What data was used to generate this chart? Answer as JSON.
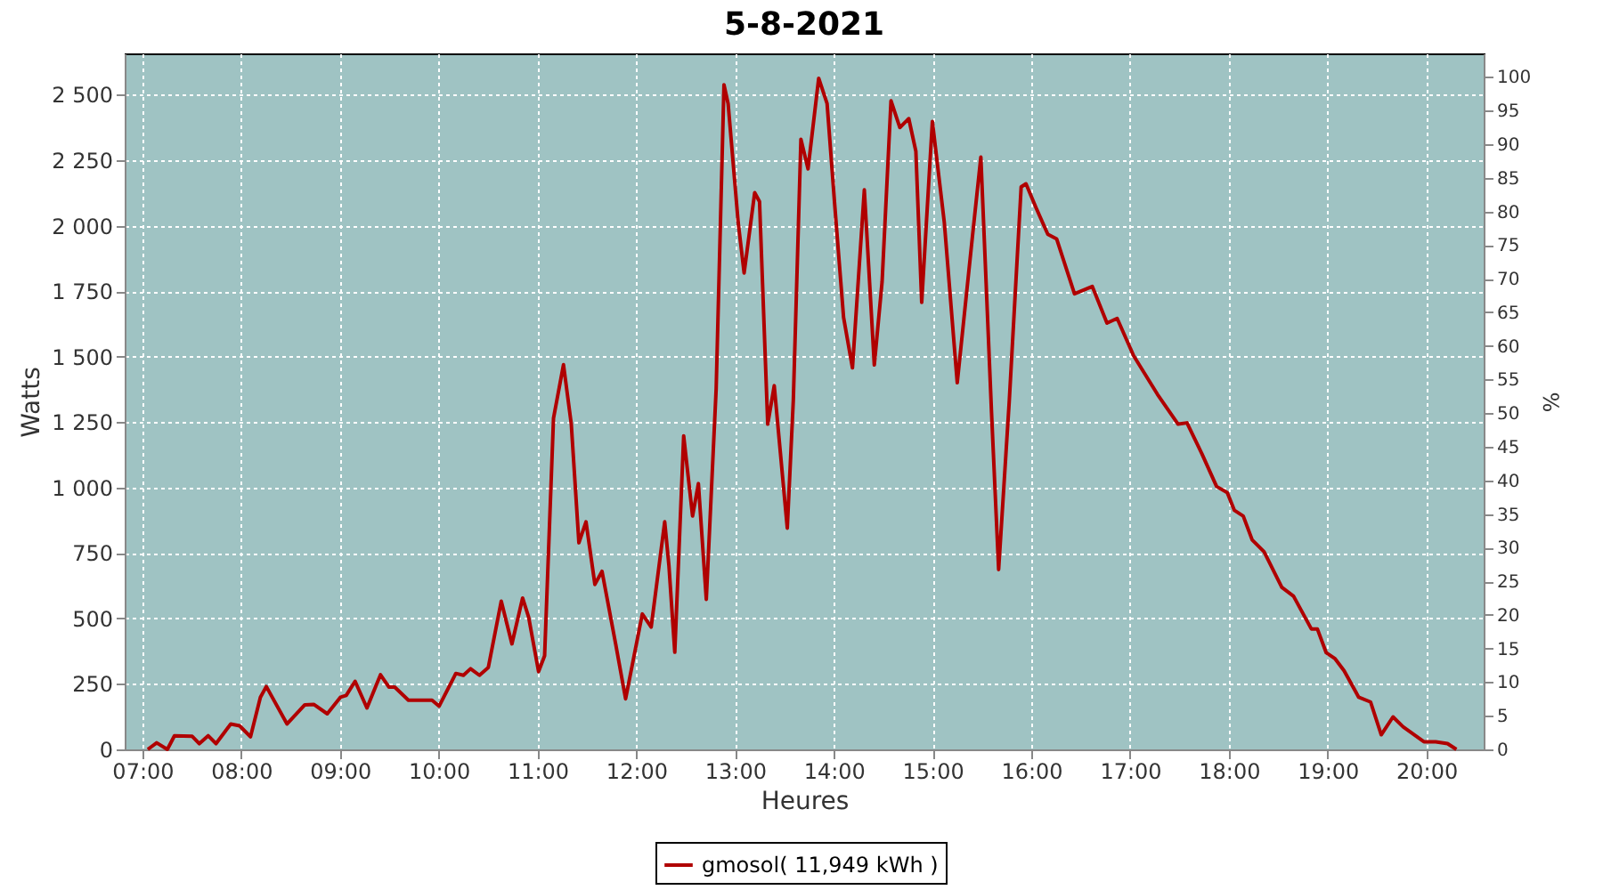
{
  "chart_data": {
    "type": "line",
    "title": "5-8-2021",
    "xlabel": "Heures",
    "ylabel": "Watts",
    "y2label": "%",
    "xlim": [
      6.82,
      20.58
    ],
    "xticks": [
      {
        "value": 7,
        "label": "07:00"
      },
      {
        "value": 8,
        "label": "08:00"
      },
      {
        "value": 9,
        "label": "09:00"
      },
      {
        "value": 10,
        "label": "10:00"
      },
      {
        "value": 11,
        "label": "11:00"
      },
      {
        "value": 12,
        "label": "12:00"
      },
      {
        "value": 13,
        "label": "13:00"
      },
      {
        "value": 14,
        "label": "14:00"
      },
      {
        "value": 15,
        "label": "15:00"
      },
      {
        "value": 16,
        "label": "16:00"
      },
      {
        "value": 17,
        "label": "17:00"
      },
      {
        "value": 18,
        "label": "18:00"
      },
      {
        "value": 19,
        "label": "19:00"
      },
      {
        "value": 20,
        "label": "20:00"
      }
    ],
    "ylim": [
      0,
      2658
    ],
    "yticks": [
      0,
      250,
      500,
      750,
      {
        "value": 1000,
        "label": "1 000"
      },
      {
        "value": 1250,
        "label": "1 250"
      },
      {
        "value": 1500,
        "label": "1 500"
      },
      {
        "value": 1750,
        "label": "1 750"
      },
      {
        "value": 2000,
        "label": "2 000"
      },
      {
        "value": 2250,
        "label": "2 250"
      },
      {
        "value": 2500,
        "label": "2 500"
      }
    ],
    "y2lim": [
      0,
      103.5
    ],
    "y2ticks": [
      0,
      5,
      10,
      15,
      20,
      25,
      30,
      35,
      40,
      45,
      50,
      55,
      60,
      65,
      70,
      75,
      80,
      85,
      90,
      95,
      100
    ],
    "grid": true,
    "legend": "bottom",
    "marker": "none",
    "line_style": "solid",
    "series": [
      {
        "name": "gmosol( 11,949 kWh )",
        "color": "#b00000",
        "x": [
          7.054,
          7.144,
          7.252,
          7.324,
          7.504,
          7.576,
          7.665,
          7.745,
          7.894,
          7.984,
          8.094,
          8.194,
          8.254,
          8.464,
          8.644,
          8.734,
          8.871,
          9.004,
          9.063,
          9.153,
          9.273,
          9.41,
          9.495,
          9.554,
          9.693,
          9.932,
          10.004,
          10.173,
          10.25,
          10.322,
          10.412,
          10.502,
          10.633,
          10.741,
          10.849,
          10.91,
          11.011,
          11.072,
          11.162,
          11.263,
          11.342,
          11.419,
          11.491,
          11.581,
          11.653,
          11.791,
          11.892,
          12.061,
          12.151,
          12.288,
          12.331,
          12.39,
          12.48,
          12.57,
          12.629,
          12.709,
          12.809,
          12.888,
          12.93,
          13.032,
          13.092,
          13.199,
          13.248,
          13.331,
          13.397,
          13.529,
          13.59,
          13.667,
          13.739,
          13.847,
          13.932,
          14.009,
          14.099,
          14.189,
          14.309,
          14.41,
          14.489,
          14.579,
          14.669,
          14.759,
          14.831,
          14.89,
          14.998,
          15.119,
          15.25,
          15.406,
          15.489,
          15.597,
          15.669,
          15.777,
          15.897,
          15.946,
          16.047,
          16.167,
          16.257,
          16.437,
          16.617,
          16.766,
          16.869,
          17.036,
          17.277,
          17.486,
          17.576,
          17.727,
          17.876,
          17.984,
          18.056,
          18.146,
          18.236,
          18.356,
          18.536,
          18.655,
          18.835,
          18.896,
          18.986,
          19.076,
          19.166,
          19.315,
          19.435,
          19.543,
          19.662,
          19.764,
          19.975,
          20.094,
          20.214,
          20.304
        ],
        "values": [
          0,
          25,
          0,
          52,
          50,
          22,
          52,
          22,
          97,
          90,
          48,
          199,
          240,
          97,
          170,
          172,
          136,
          199,
          206,
          260,
          158,
          285,
          238,
          238,
          188,
          188,
          165,
          290,
          283,
          308,
          283,
          313,
          566,
          403,
          578,
          505,
          297,
          358,
          1265,
          1469,
          1242,
          789,
          869,
          630,
          680,
          403,
          193,
          517,
          467,
          869,
          700,
          371,
          1197,
          891,
          1015,
          573,
          1378,
          2538,
          2466,
          2012,
          1819,
          2126,
          2092,
          1242,
          1389,
          845,
          1333,
          2330,
          2217,
          2563,
          2466,
          2081,
          1650,
          1457,
          2137,
          1468,
          1786,
          2477,
          2375,
          2409,
          2284,
          1707,
          2398,
          2012,
          1400,
          1967,
          2262,
          1287,
          687,
          1333,
          2148,
          2160,
          2069,
          1967,
          1949,
          1740,
          1768,
          1628,
          1646,
          1503,
          1356,
          1242,
          1247,
          1129,
          1004,
          981,
          913,
          891,
          800,
          755,
          619,
          585,
          460,
          460,
          369,
          346,
          301,
          199,
          181,
          56,
          124,
          86,
          29,
          29,
          22,
          0
        ]
      }
    ]
  }
}
